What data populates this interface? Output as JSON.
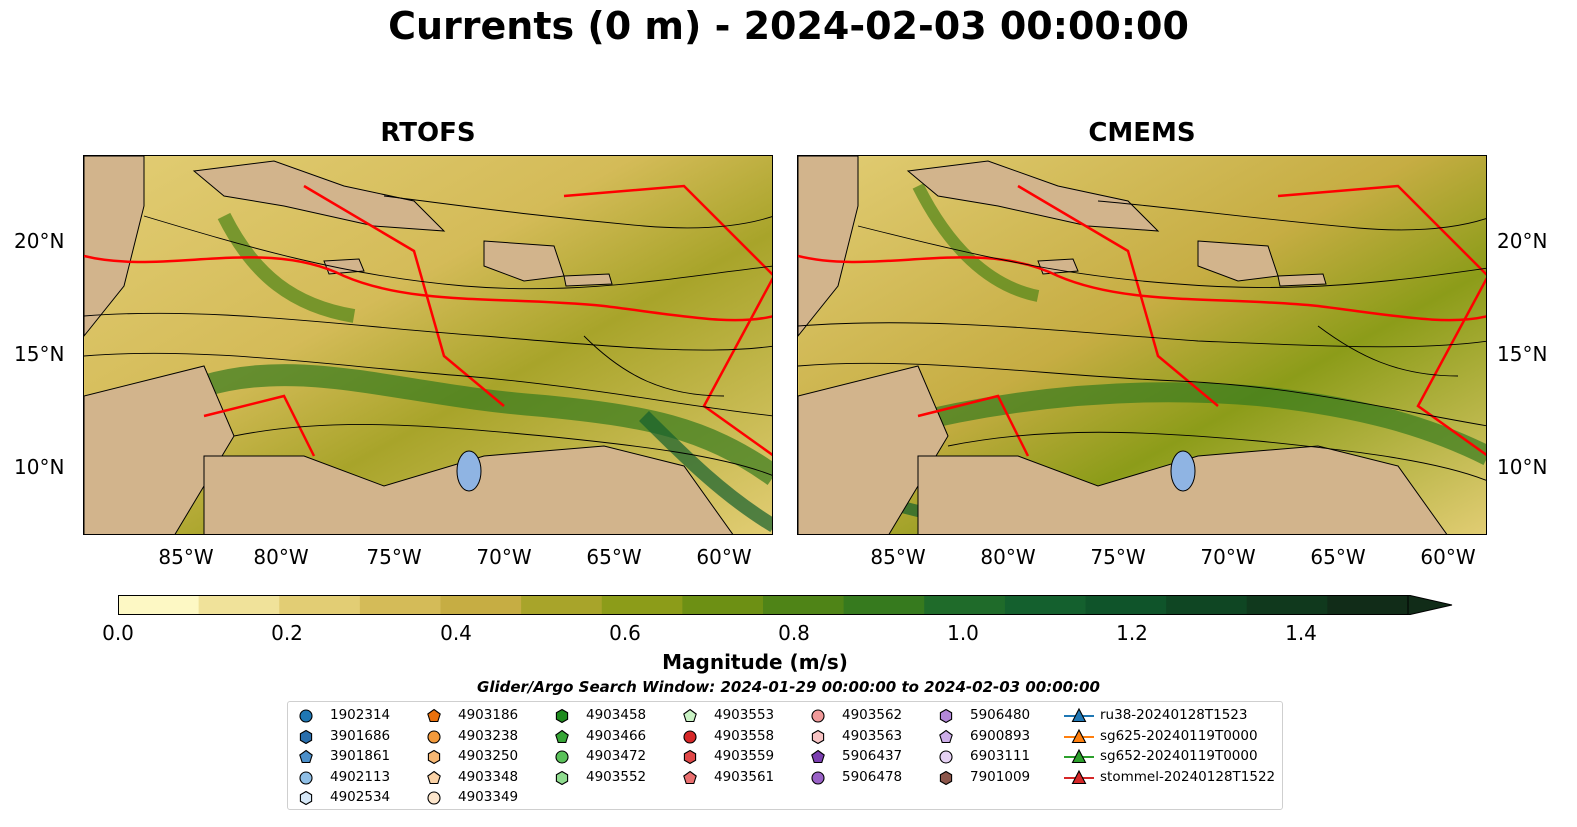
{
  "title": "Currents (0 m) - 2024-02-03 00:00:00",
  "panels": [
    {
      "title": "RTOFS"
    },
    {
      "title": "CMEMS"
    }
  ],
  "lat_labels": [
    "20°N",
    "15°N",
    "10°N"
  ],
  "lon_labels": [
    "85°W",
    "80°W",
    "75°W",
    "70°W",
    "65°W",
    "60°W"
  ],
  "colorbar": {
    "label": "Magnitude (m/s)",
    "ticks": [
      "0.0",
      "0.2",
      "0.4",
      "0.6",
      "0.8",
      "1.0",
      "1.2",
      "1.4"
    ],
    "min": 0.0,
    "max": 1.6,
    "extend": "max",
    "colors": [
      "#fdf8c4",
      "#f0e29a",
      "#e2cd74",
      "#d4bb58",
      "#c6ad43",
      "#a8a42a",
      "#8c9c19",
      "#6d9014",
      "#4f8417",
      "#367a1e",
      "#1f6b2a",
      "#14602e",
      "#0f542a",
      "#0f4623",
      "#10391d",
      "#112c18"
    ]
  },
  "search_window": "Glider/Argo Search Window: 2024-01-29 00:00:00 to 2024-02-03 00:00:00",
  "legend": {
    "columns": [
      [
        {
          "label": "1902314",
          "marker": "circle",
          "color": "#1f77b4"
        },
        {
          "label": "3901686",
          "marker": "hexagon",
          "color": "#2a6fad"
        },
        {
          "label": "3901861",
          "marker": "pentagon",
          "color": "#4c8fc9"
        },
        {
          "label": "4902113",
          "marker": "circle",
          "color": "#8fbfe6"
        },
        {
          "label": "4902534",
          "marker": "hexagon",
          "color": "#d6e8f7"
        }
      ],
      [
        {
          "label": "4903186",
          "marker": "pentagon",
          "color": "#e8700c"
        },
        {
          "label": "4903238",
          "marker": "circle",
          "color": "#f39a3c"
        },
        {
          "label": "4903250",
          "marker": "hexagon",
          "color": "#f7b874"
        },
        {
          "label": "4903348",
          "marker": "pentagon",
          "color": "#fad2a6"
        },
        {
          "label": "4903349",
          "marker": "circle",
          "color": "#fde6cc"
        }
      ],
      [
        {
          "label": "4903458",
          "marker": "hexagon",
          "color": "#1e8a1e"
        },
        {
          "label": "4903466",
          "marker": "pentagon",
          "color": "#36a536"
        },
        {
          "label": "4903472",
          "marker": "circle",
          "color": "#5ac15a"
        },
        {
          "label": "4903552",
          "marker": "hexagon",
          "color": "#8fdc8f"
        }
      ],
      [
        {
          "label": "4903553",
          "marker": "pentagon",
          "color": "#c9f2c4"
        },
        {
          "label": "4903558",
          "marker": "circle",
          "color": "#d62728"
        },
        {
          "label": "4903559",
          "marker": "hexagon",
          "color": "#e04848"
        },
        {
          "label": "4903561",
          "marker": "pentagon",
          "color": "#ea7070"
        }
      ],
      [
        {
          "label": "4903562",
          "marker": "circle",
          "color": "#f19a9a"
        },
        {
          "label": "4903563",
          "marker": "hexagon",
          "color": "#f8c4c4"
        },
        {
          "label": "5906437",
          "marker": "pentagon",
          "color": "#7b3fb0"
        },
        {
          "label": "5906478",
          "marker": "circle",
          "color": "#9a62c7"
        }
      ],
      [
        {
          "label": "5906480",
          "marker": "hexagon",
          "color": "#b388d9"
        },
        {
          "label": "6900893",
          "marker": "pentagon",
          "color": "#cdaee8"
        },
        {
          "label": "6903111",
          "marker": "circle",
          "color": "#e6d2f4"
        },
        {
          "label": "7901009",
          "marker": "hexagon",
          "color": "#8c564b"
        }
      ],
      [
        {
          "label": "ru38-20240128T1523",
          "marker": "triangle-line",
          "color": "#1f77b4"
        },
        {
          "label": "sg625-20240119T0000",
          "marker": "triangle-line",
          "color": "#ff7f0e"
        },
        {
          "label": "sg652-20240119T0000",
          "marker": "triangle-line",
          "color": "#2ca02c"
        },
        {
          "label": "stommel-20240128T1522",
          "marker": "triangle-line",
          "color": "#d62728"
        }
      ]
    ]
  },
  "colors": {
    "land": "#d2b48c",
    "water_body": "#8fb4e3",
    "river": "#9cb8d8",
    "boundary": "#ff0000",
    "streamline": "#000000"
  }
}
